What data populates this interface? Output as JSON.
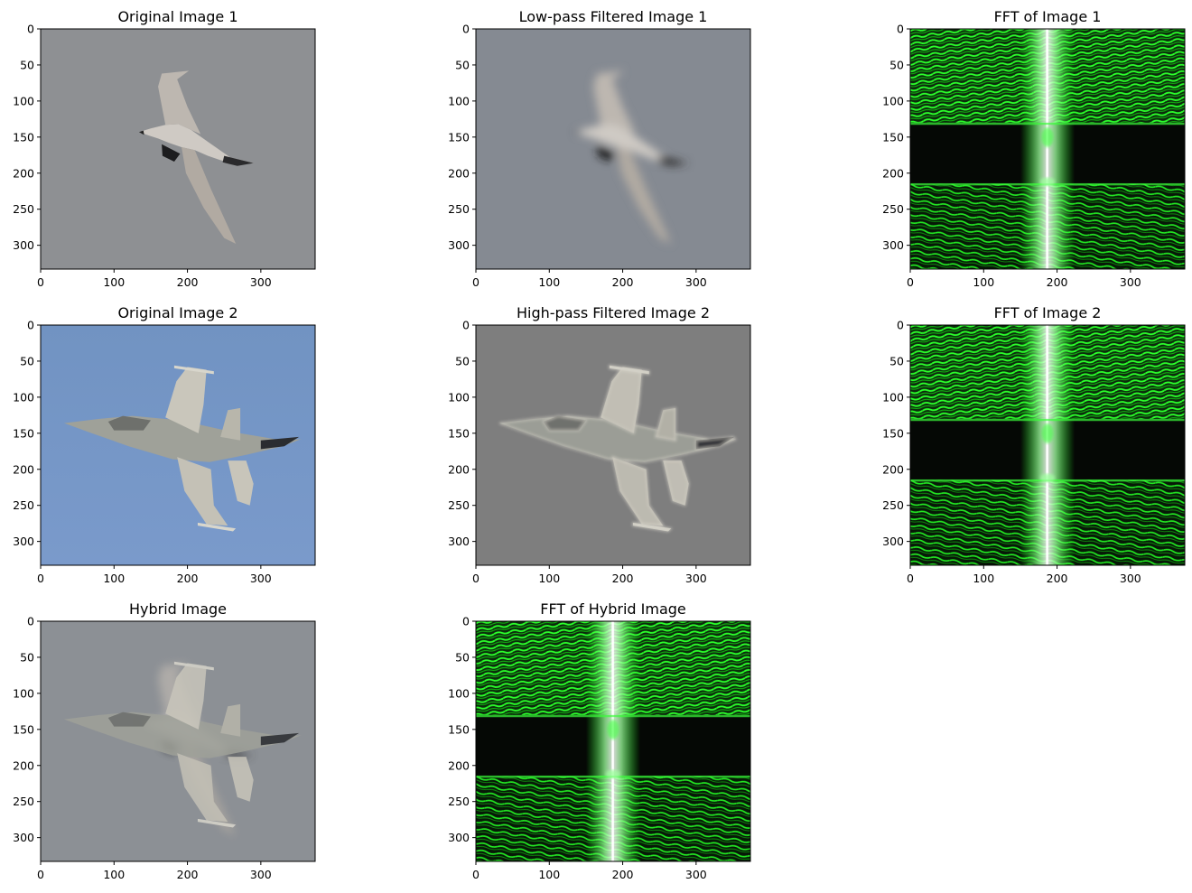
{
  "chart_data": [
    {
      "type": "image",
      "title": "Original Image 1",
      "image": "bird-gray-background",
      "xlim": [
        0,
        374
      ],
      "ylim": [
        333,
        0
      ],
      "xticks": [
        0,
        100,
        200,
        300
      ],
      "yticks": [
        0,
        50,
        100,
        150,
        200,
        250,
        300
      ],
      "xtick_labels": [
        "0",
        "100",
        "200",
        "300"
      ],
      "ytick_labels": [
        "0",
        "50",
        "100",
        "150",
        "200",
        "250",
        "300"
      ]
    },
    {
      "type": "image",
      "title": "Low-pass Filtered Image 1",
      "image": "bird-blurred",
      "xlim": [
        0,
        374
      ],
      "ylim": [
        333,
        0
      ],
      "xticks": [
        0,
        100,
        200,
        300
      ],
      "yticks": [
        0,
        50,
        100,
        150,
        200,
        250,
        300
      ],
      "xtick_labels": [
        "0",
        "100",
        "200",
        "300"
      ],
      "ytick_labels": [
        "0",
        "50",
        "100",
        "150",
        "200",
        "250",
        "300"
      ]
    },
    {
      "type": "image",
      "title": "FFT of Image 1",
      "image": "fft-spectrum-green",
      "xlim": [
        0,
        374
      ],
      "ylim": [
        333,
        0
      ],
      "xticks": [
        0,
        100,
        200,
        300
      ],
      "yticks": [
        0,
        50,
        100,
        150,
        200,
        250,
        300
      ],
      "xtick_labels": [
        "0",
        "100",
        "200",
        "300"
      ],
      "ytick_labels": [
        "0",
        "50",
        "100",
        "150",
        "200",
        "250",
        "300"
      ]
    },
    {
      "type": "image",
      "title": "Original Image 2",
      "image": "jet-blue-sky",
      "xlim": [
        0,
        374
      ],
      "ylim": [
        333,
        0
      ],
      "xticks": [
        0,
        100,
        200,
        300
      ],
      "yticks": [
        0,
        50,
        100,
        150,
        200,
        250,
        300
      ],
      "xtick_labels": [
        "0",
        "100",
        "200",
        "300"
      ],
      "ytick_labels": [
        "0",
        "50",
        "100",
        "150",
        "200",
        "250",
        "300"
      ]
    },
    {
      "type": "image",
      "title": "High-pass Filtered Image 2",
      "image": "jet-high-pass-gray",
      "xlim": [
        0,
        374
      ],
      "ylim": [
        333,
        0
      ],
      "xticks": [
        0,
        100,
        200,
        300
      ],
      "yticks": [
        0,
        50,
        100,
        150,
        200,
        250,
        300
      ],
      "xtick_labels": [
        "0",
        "100",
        "200",
        "300"
      ],
      "ytick_labels": [
        "0",
        "50",
        "100",
        "150",
        "200",
        "250",
        "300"
      ]
    },
    {
      "type": "image",
      "title": "FFT of Image 2",
      "image": "fft-spectrum-green",
      "xlim": [
        0,
        374
      ],
      "ylim": [
        333,
        0
      ],
      "xticks": [
        0,
        100,
        200,
        300
      ],
      "yticks": [
        0,
        50,
        100,
        150,
        200,
        250,
        300
      ],
      "xtick_labels": [
        "0",
        "100",
        "200",
        "300"
      ],
      "ytick_labels": [
        "0",
        "50",
        "100",
        "150",
        "200",
        "250",
        "300"
      ]
    },
    {
      "type": "image",
      "title": "Hybrid Image",
      "image": "hybrid-jet-bird",
      "xlim": [
        0,
        374
      ],
      "ylim": [
        333,
        0
      ],
      "xticks": [
        0,
        100,
        200,
        300
      ],
      "yticks": [
        0,
        50,
        100,
        150,
        200,
        250,
        300
      ],
      "xtick_labels": [
        "0",
        "100",
        "200",
        "300"
      ],
      "ytick_labels": [
        "0",
        "50",
        "100",
        "150",
        "200",
        "250",
        "300"
      ]
    },
    {
      "type": "image",
      "title": "FFT of Hybrid Image",
      "image": "fft-spectrum-green",
      "xlim": [
        0,
        374
      ],
      "ylim": [
        333,
        0
      ],
      "xticks": [
        0,
        100,
        200,
        300
      ],
      "yticks": [
        0,
        50,
        100,
        150,
        200,
        250,
        300
      ],
      "xtick_labels": [
        "0",
        "100",
        "200",
        "300"
      ],
      "ytick_labels": [
        "0",
        "50",
        "100",
        "150",
        "200",
        "250",
        "300"
      ]
    }
  ]
}
